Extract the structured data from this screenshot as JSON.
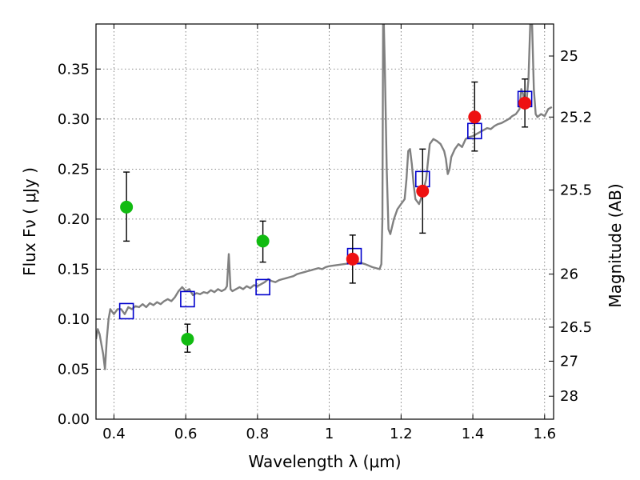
{
  "chart_data": {
    "type": "scatter",
    "xlabel": "Wavelength  λ (μm)",
    "ylabel": "Flux  Fν  ( μJy )",
    "y2label": "Magnitude (AB)",
    "xlim": [
      0.35,
      1.625
    ],
    "ylim": [
      0.0,
      0.395
    ],
    "x_ticks": [
      "0.4",
      "0.6",
      "0.8",
      "1",
      "1.2",
      "1.4",
      "1.6"
    ],
    "y_ticks": [
      "0.00",
      "0.05",
      "0.10",
      "0.15",
      "0.20",
      "0.25",
      "0.30",
      "0.35"
    ],
    "grid": true,
    "magnitude_ticks": [
      {
        "label": "25",
        "flux": 0.363
      },
      {
        "label": "25.2",
        "flux": 0.302
      },
      {
        "label": "25.5",
        "flux": 0.229
      },
      {
        "label": "26",
        "flux": 0.145
      },
      {
        "label": "26.5",
        "flux": 0.092
      },
      {
        "label": "27",
        "flux": 0.058
      },
      {
        "label": "28",
        "flux": 0.023
      }
    ],
    "colors": {
      "template": "#808080",
      "model_box": "#0000cc",
      "green": "#11bb11",
      "red": "#ee1111",
      "errorbar": "#000000"
    },
    "series": [
      {
        "kind": "line",
        "points": [
          [
            0.35,
            0.08
          ],
          [
            0.355,
            0.09
          ],
          [
            0.36,
            0.085
          ],
          [
            0.365,
            0.075
          ],
          [
            0.37,
            0.065
          ],
          [
            0.375,
            0.05
          ],
          [
            0.38,
            0.08
          ],
          [
            0.385,
            0.1
          ],
          [
            0.39,
            0.11
          ],
          [
            0.4,
            0.105
          ],
          [
            0.41,
            0.11
          ],
          [
            0.42,
            0.11
          ],
          [
            0.43,
            0.105
          ],
          [
            0.44,
            0.112
          ],
          [
            0.45,
            0.11
          ],
          [
            0.46,
            0.113
          ],
          [
            0.47,
            0.112
          ],
          [
            0.48,
            0.115
          ],
          [
            0.49,
            0.112
          ],
          [
            0.5,
            0.116
          ],
          [
            0.51,
            0.114
          ],
          [
            0.52,
            0.117
          ],
          [
            0.53,
            0.115
          ],
          [
            0.54,
            0.118
          ],
          [
            0.55,
            0.12
          ],
          [
            0.56,
            0.118
          ],
          [
            0.57,
            0.122
          ],
          [
            0.58,
            0.128
          ],
          [
            0.59,
            0.132
          ],
          [
            0.6,
            0.128
          ],
          [
            0.61,
            0.13
          ],
          [
            0.62,
            0.124
          ],
          [
            0.63,
            0.126
          ],
          [
            0.64,
            0.125
          ],
          [
            0.65,
            0.127
          ],
          [
            0.66,
            0.126
          ],
          [
            0.67,
            0.129
          ],
          [
            0.68,
            0.127
          ],
          [
            0.69,
            0.13
          ],
          [
            0.7,
            0.128
          ],
          [
            0.71,
            0.13
          ],
          [
            0.715,
            0.133
          ],
          [
            0.72,
            0.165
          ],
          [
            0.725,
            0.13
          ],
          [
            0.73,
            0.128
          ],
          [
            0.74,
            0.13
          ],
          [
            0.75,
            0.132
          ],
          [
            0.76,
            0.13
          ],
          [
            0.77,
            0.133
          ],
          [
            0.78,
            0.131
          ],
          [
            0.79,
            0.134
          ],
          [
            0.8,
            0.133
          ],
          [
            0.81,
            0.135
          ],
          [
            0.82,
            0.137
          ],
          [
            0.83,
            0.14
          ],
          [
            0.84,
            0.138
          ],
          [
            0.85,
            0.137
          ],
          [
            0.86,
            0.139
          ],
          [
            0.87,
            0.14
          ],
          [
            0.88,
            0.141
          ],
          [
            0.89,
            0.142
          ],
          [
            0.9,
            0.143
          ],
          [
            0.91,
            0.145
          ],
          [
            0.92,
            0.146
          ],
          [
            0.93,
            0.147
          ],
          [
            0.94,
            0.148
          ],
          [
            0.95,
            0.149
          ],
          [
            0.96,
            0.15
          ],
          [
            0.97,
            0.151
          ],
          [
            0.98,
            0.15
          ],
          [
            0.99,
            0.152
          ],
          [
            1.0,
            0.153
          ],
          [
            1.02,
            0.154
          ],
          [
            1.04,
            0.155
          ],
          [
            1.06,
            0.156
          ],
          [
            1.08,
            0.157
          ],
          [
            1.1,
            0.155
          ],
          [
            1.12,
            0.152
          ],
          [
            1.14,
            0.15
          ],
          [
            1.145,
            0.155
          ],
          [
            1.148,
            0.2
          ],
          [
            1.15,
            0.395
          ],
          [
            1.152,
            0.395
          ],
          [
            1.155,
            0.35
          ],
          [
            1.16,
            0.25
          ],
          [
            1.165,
            0.19
          ],
          [
            1.17,
            0.185
          ],
          [
            1.18,
            0.2
          ],
          [
            1.19,
            0.21
          ],
          [
            1.2,
            0.215
          ],
          [
            1.21,
            0.22
          ],
          [
            1.215,
            0.24
          ],
          [
            1.22,
            0.268
          ],
          [
            1.225,
            0.27
          ],
          [
            1.23,
            0.255
          ],
          [
            1.235,
            0.235
          ],
          [
            1.24,
            0.22
          ],
          [
            1.25,
            0.215
          ],
          [
            1.26,
            0.225
          ],
          [
            1.27,
            0.24
          ],
          [
            1.28,
            0.275
          ],
          [
            1.29,
            0.28
          ],
          [
            1.3,
            0.278
          ],
          [
            1.31,
            0.275
          ],
          [
            1.32,
            0.268
          ],
          [
            1.325,
            0.26
          ],
          [
            1.33,
            0.245
          ],
          [
            1.335,
            0.25
          ],
          [
            1.34,
            0.262
          ],
          [
            1.35,
            0.27
          ],
          [
            1.36,
            0.275
          ],
          [
            1.37,
            0.272
          ],
          [
            1.38,
            0.28
          ],
          [
            1.39,
            0.282
          ],
          [
            1.4,
            0.283
          ],
          [
            1.41,
            0.285
          ],
          [
            1.42,
            0.287
          ],
          [
            1.43,
            0.289
          ],
          [
            1.44,
            0.291
          ],
          [
            1.45,
            0.29
          ],
          [
            1.46,
            0.293
          ],
          [
            1.47,
            0.295
          ],
          [
            1.48,
            0.296
          ],
          [
            1.49,
            0.298
          ],
          [
            1.5,
            0.3
          ],
          [
            1.51,
            0.303
          ],
          [
            1.52,
            0.305
          ],
          [
            1.53,
            0.31
          ],
          [
            1.535,
            0.33
          ],
          [
            1.54,
            0.325
          ],
          [
            1.545,
            0.31
          ],
          [
            1.55,
            0.32
          ],
          [
            1.555,
            0.34
          ],
          [
            1.56,
            0.395
          ],
          [
            1.565,
            0.395
          ],
          [
            1.57,
            0.33
          ],
          [
            1.575,
            0.305
          ],
          [
            1.58,
            0.302
          ],
          [
            1.59,
            0.305
          ],
          [
            1.6,
            0.303
          ],
          [
            1.61,
            0.31
          ],
          [
            1.62,
            0.312
          ]
        ]
      },
      {
        "kind": "squares",
        "points": [
          [
            0.435,
            0.108
          ],
          [
            0.605,
            0.12
          ],
          [
            0.815,
            0.132
          ],
          [
            1.07,
            0.163
          ],
          [
            1.26,
            0.24
          ],
          [
            1.405,
            0.288
          ],
          [
            1.545,
            0.32
          ]
        ]
      },
      {
        "kind": "points",
        "color": "green",
        "points": [
          {
            "x": 0.435,
            "y": 0.212,
            "lo": 0.178,
            "hi": 0.247
          },
          {
            "x": 0.605,
            "y": 0.08,
            "lo": 0.067,
            "hi": 0.095
          },
          {
            "x": 0.815,
            "y": 0.178,
            "lo": 0.157,
            "hi": 0.198
          }
        ]
      },
      {
        "kind": "points",
        "color": "red",
        "points": [
          {
            "x": 1.065,
            "y": 0.16,
            "lo": 0.136,
            "hi": 0.184
          },
          {
            "x": 1.26,
            "y": 0.228,
            "lo": 0.186,
            "hi": 0.27
          },
          {
            "x": 1.405,
            "y": 0.302,
            "lo": 0.268,
            "hi": 0.337
          },
          {
            "x": 1.545,
            "y": 0.316,
            "lo": 0.292,
            "hi": 0.34
          }
        ]
      }
    ]
  }
}
